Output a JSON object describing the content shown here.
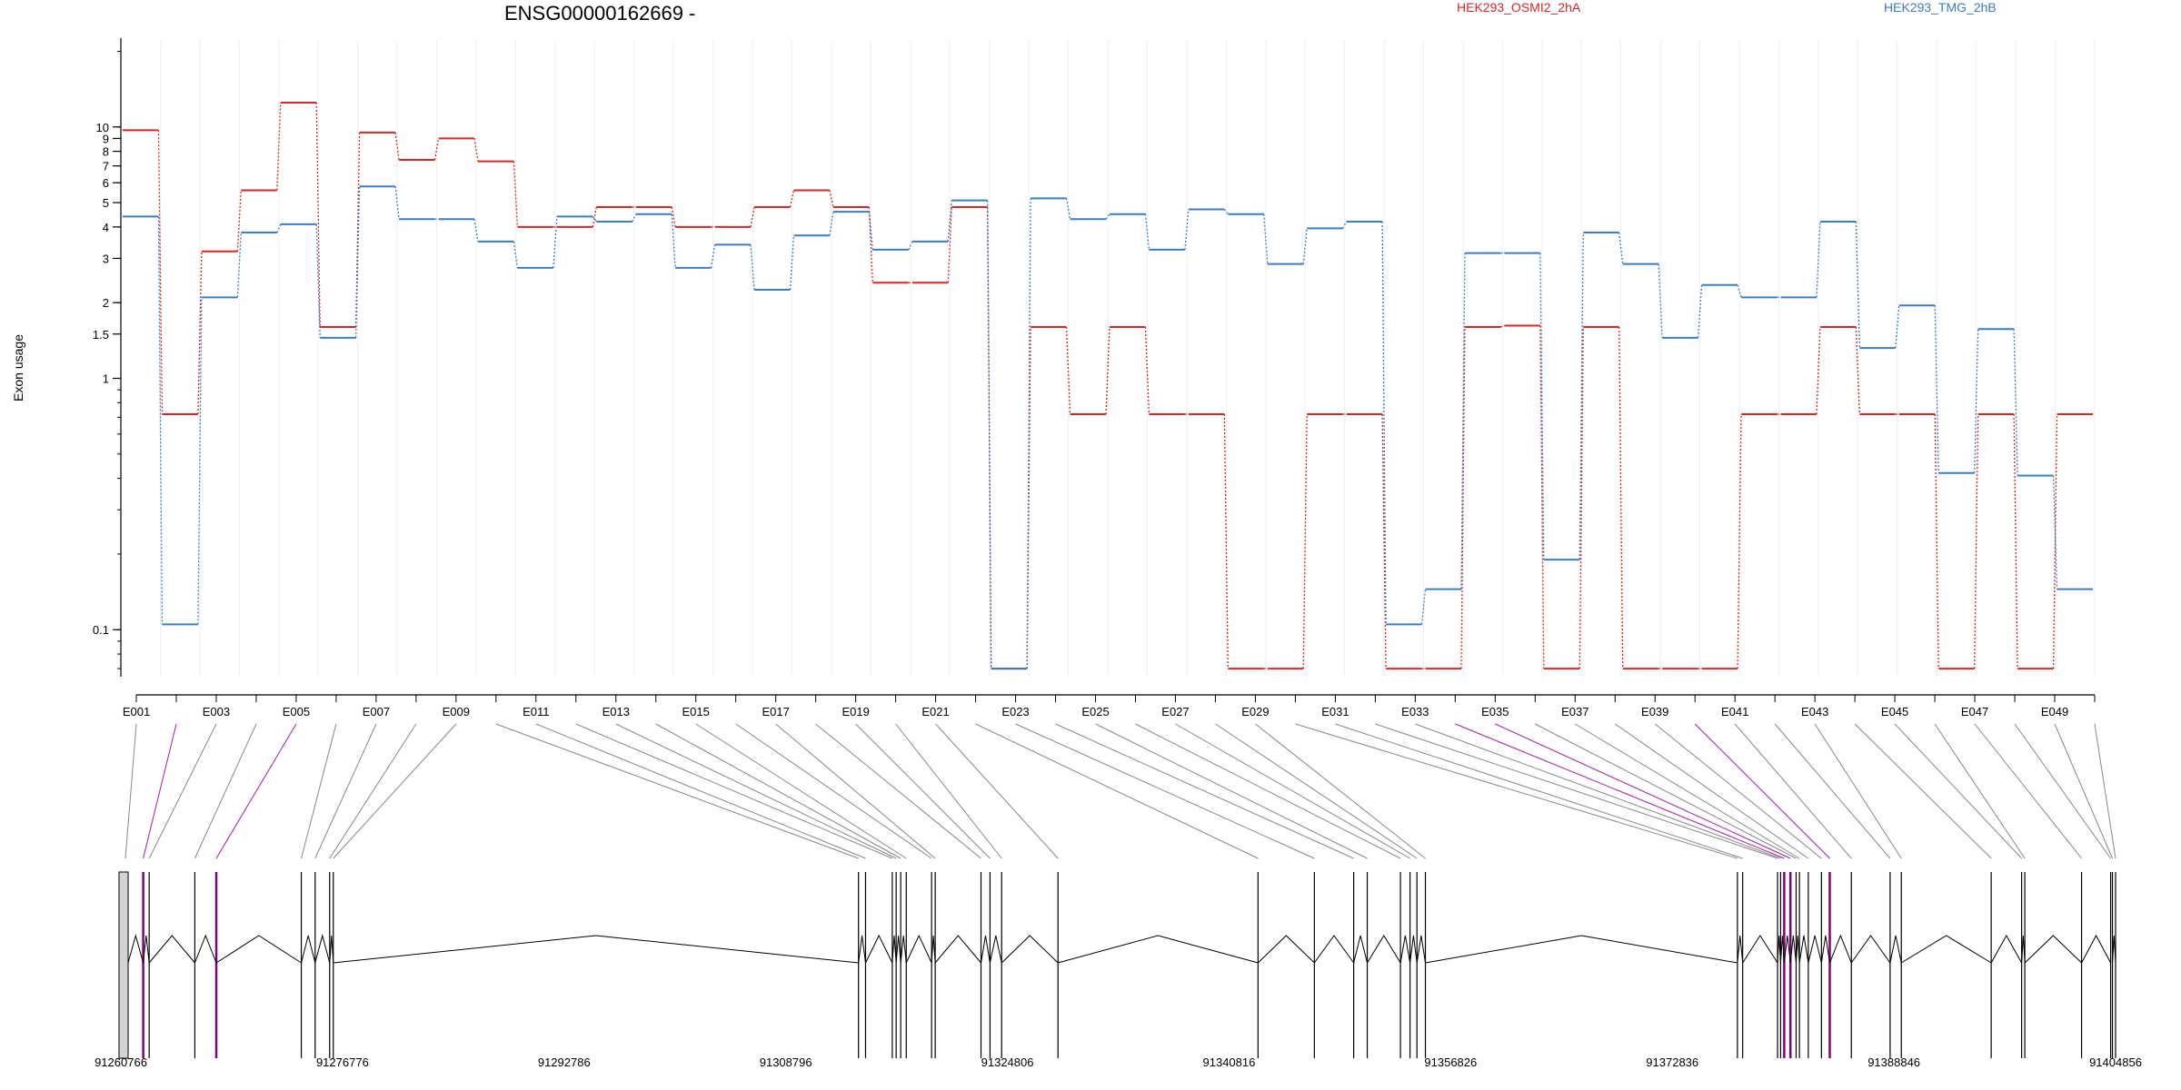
{
  "chart_data": {
    "type": "line",
    "title": "ENSG00000162669 -",
    "ylabel": "Exon usage",
    "yscale": "log",
    "ylim": [
      0.065,
      22
    ],
    "yticks": [
      {
        "v": 10,
        "label": "10"
      },
      {
        "v": 9,
        "label": "9"
      },
      {
        "v": 8,
        "label": "8"
      },
      {
        "v": 7,
        "label": "7"
      },
      {
        "v": 6,
        "label": "6"
      },
      {
        "v": 5,
        "label": "5"
      },
      {
        "v": 4,
        "label": "4"
      },
      {
        "v": 3,
        "label": "3"
      },
      {
        "v": 2,
        "label": "2"
      },
      {
        "v": 1.5,
        "label": "1.5"
      },
      {
        "v": 1,
        "label": "1"
      },
      {
        "v": 0.1,
        "label": "0.1"
      }
    ],
    "exon_labels": [
      "E001",
      "E003",
      "E005",
      "E007",
      "E009",
      "E011",
      "E013",
      "E015",
      "E017",
      "E019",
      "E021",
      "E023",
      "E025",
      "E027",
      "E029",
      "E031",
      "E033",
      "E035",
      "E037",
      "E039",
      "E041",
      "E043",
      "E045",
      "E047",
      "E049"
    ],
    "exon_count": 50,
    "series": [
      {
        "name": "HEK293_OSMI2_2hA",
        "color": "#d62728",
        "values": [
          9.7,
          0.72,
          3.2,
          5.6,
          12.5,
          1.6,
          9.5,
          7.4,
          9.0,
          7.3,
          4.0,
          4.0,
          4.8,
          4.8,
          4.0,
          4.0,
          4.8,
          5.6,
          4.8,
          2.4,
          2.4,
          4.8,
          0.07,
          1.6,
          0.72,
          1.6,
          0.72,
          0.72,
          0.07,
          0.07,
          0.72,
          0.72,
          0.07,
          0.07,
          1.6,
          1.62,
          0.07,
          1.6,
          0.07,
          0.07,
          0.07,
          0.72,
          0.72,
          1.6,
          0.72,
          0.72,
          0.07,
          0.72,
          0.07,
          0.72
        ]
      },
      {
        "name": "HEK293_TMG_2hB",
        "color": "#3b7dbf",
        "values": [
          4.4,
          0.105,
          2.1,
          3.8,
          4.1,
          1.45,
          5.8,
          4.3,
          4.3,
          3.5,
          2.75,
          4.4,
          4.2,
          4.5,
          2.75,
          3.4,
          2.25,
          3.7,
          4.6,
          3.25,
          3.5,
          5.1,
          0.07,
          5.2,
          4.3,
          4.5,
          3.25,
          4.7,
          4.5,
          2.85,
          3.95,
          4.2,
          0.105,
          0.145,
          3.15,
          3.15,
          0.19,
          3.8,
          2.85,
          1.45,
          2.35,
          2.1,
          2.1,
          4.2,
          1.32,
          1.95,
          0.42,
          1.57,
          0.41,
          0.145
        ]
      }
    ],
    "genomic_ticks": [
      "91260766",
      "91276776",
      "91292786",
      "91308796",
      "91324806",
      "91340816",
      "91356826",
      "91372836",
      "91388846",
      "91404856"
    ],
    "genomic_range": [
      91260766,
      91404856
    ],
    "purple_exons": [
      1,
      4,
      33,
      34,
      39
    ],
    "exon_positions": [
      91260766,
      91262380,
      91262810,
      91266110,
      91267660,
      91273800,
      91274800,
      91275850,
      91276110,
      91314050,
      91314560,
      91316490,
      91316770,
      91317100,
      91317500,
      91319330,
      91319590,
      91322900,
      91323550,
      91324390,
      91328460,
      91342910,
      91346980,
      91349820,
      91350800,
      91353200,
      91353890,
      91354390,
      91355000,
      91377540,
      91377920,
      91380440,
      91380660,
      91380920,
      91381370,
      91381780,
      91382020,
      91382660,
      91383610,
      91384210,
      91385770,
      91388570,
      91389380,
      91395870,
      91398070,
      91398300,
      91402400,
      91404500,
      91404630,
      91404856
    ]
  },
  "legend": {
    "series_a": "HEK293_OSMI2_2hA",
    "series_b": "HEK293_TMG_2hB"
  }
}
